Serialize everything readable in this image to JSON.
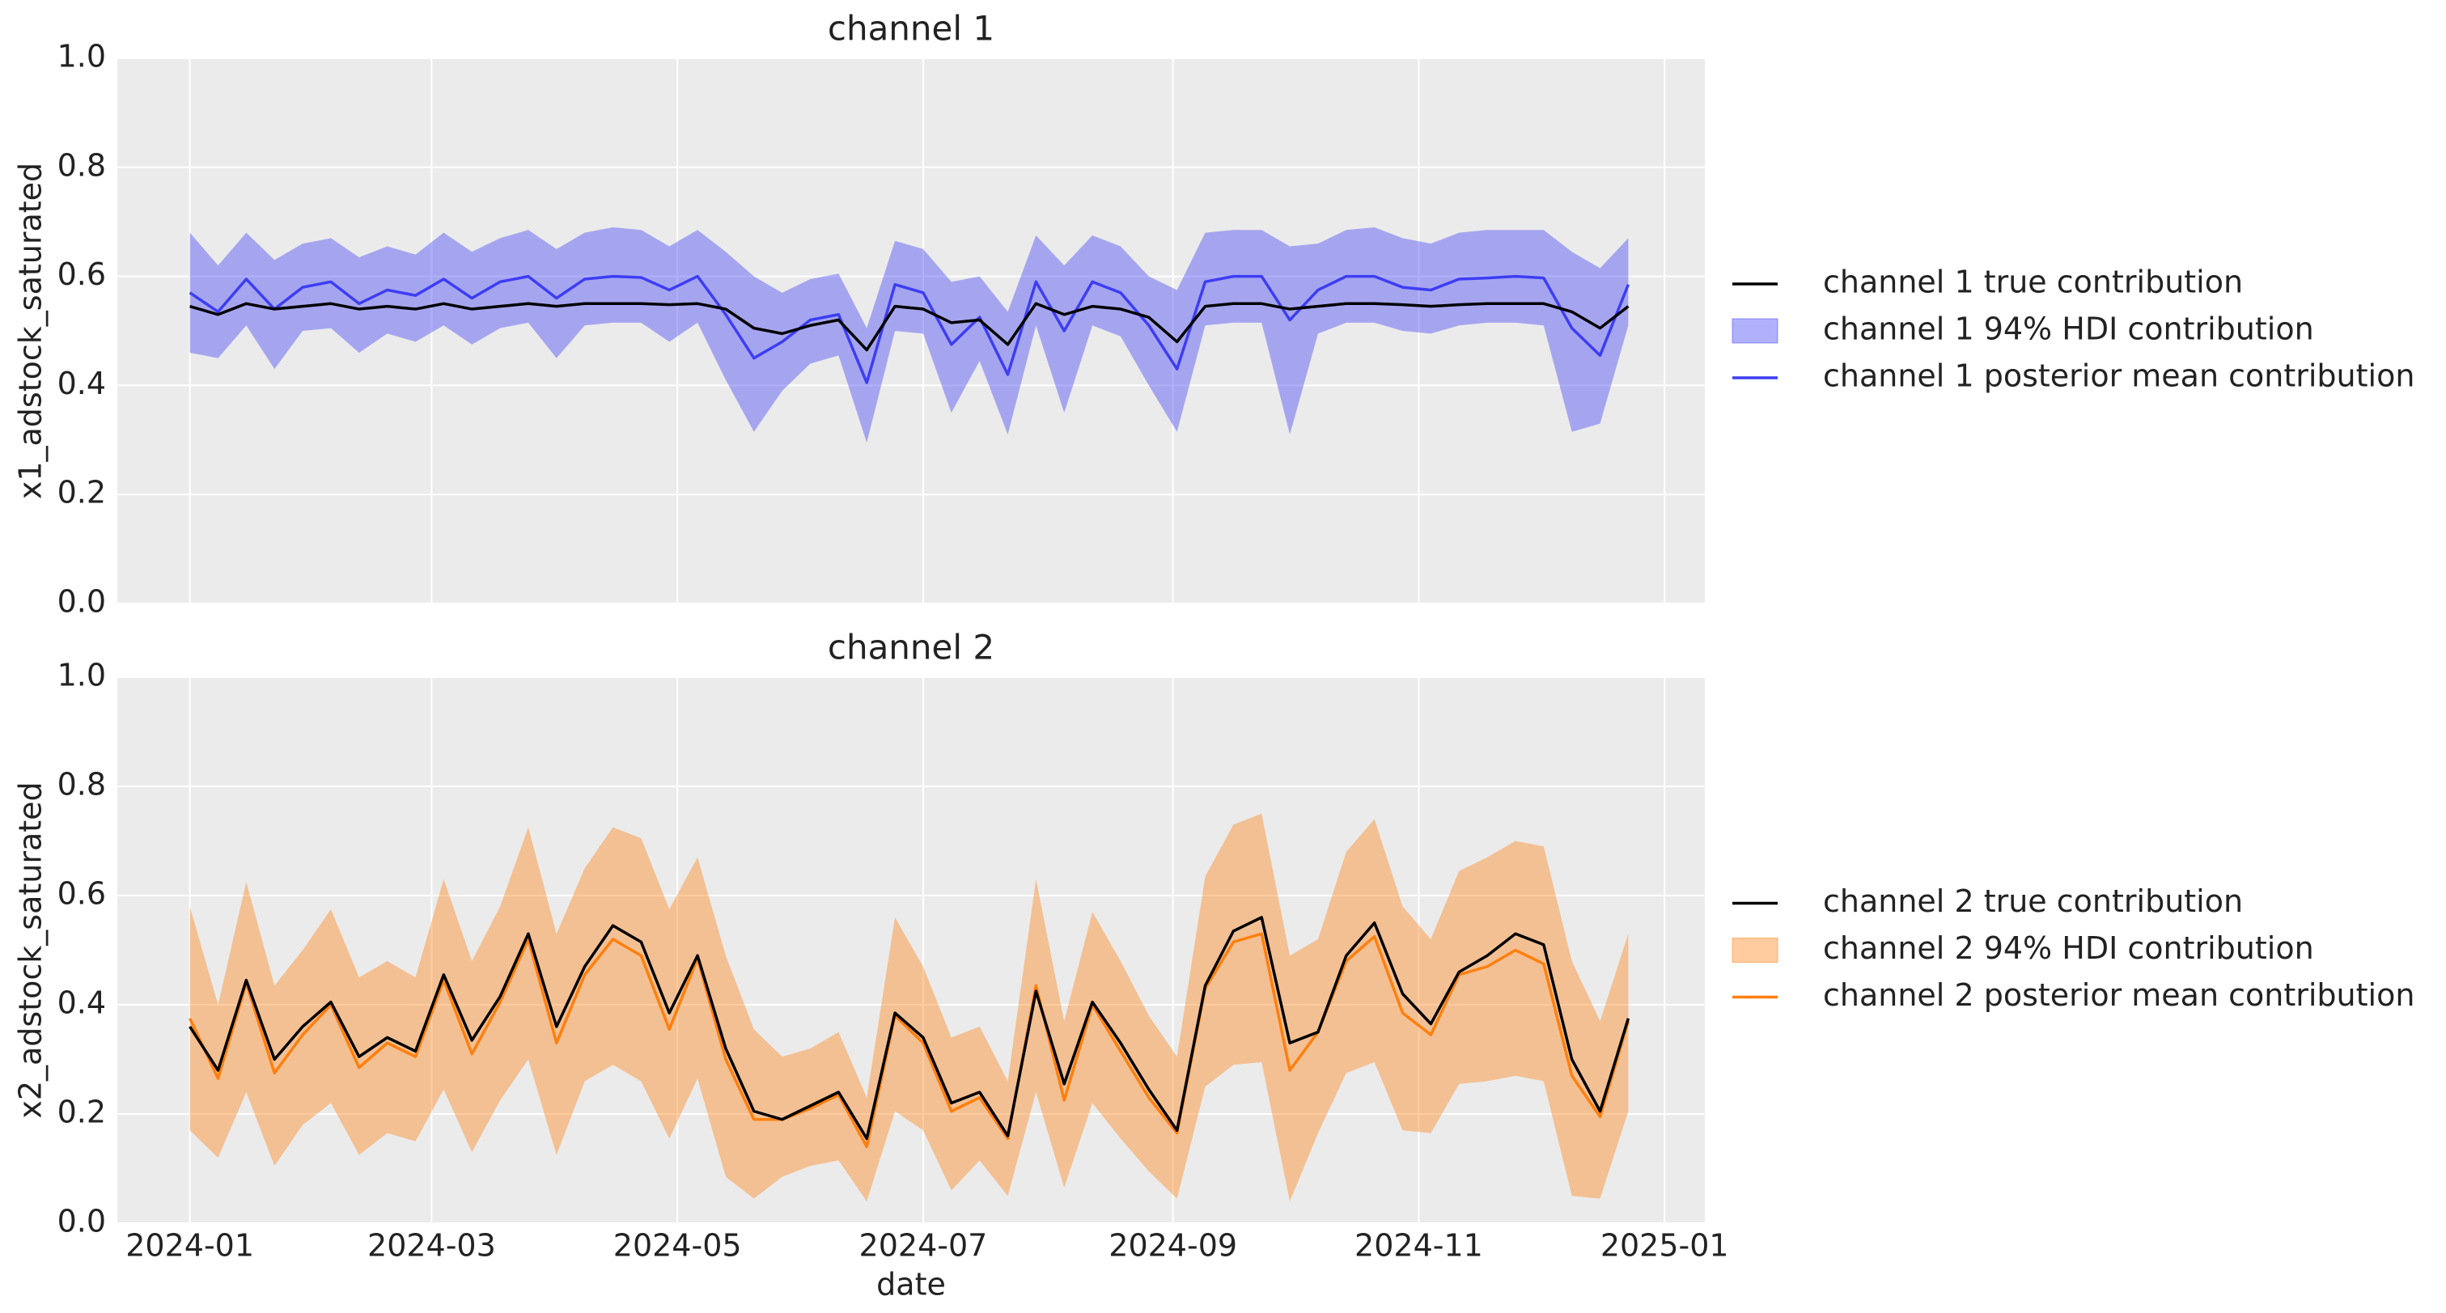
{
  "chart_data": [
    {
      "type": "line",
      "title": "channel 1",
      "ylabel": "x1_adstock_saturated",
      "legend": "right",
      "grid": true,
      "x": [
        0,
        7,
        14,
        21,
        28,
        35,
        42,
        49,
        56,
        63,
        70,
        77,
        84,
        91,
        98,
        105,
        112,
        119,
        126,
        133,
        140,
        147,
        154,
        161,
        168,
        175,
        182,
        189,
        196,
        203,
        210,
        217,
        224,
        231,
        238,
        245,
        252,
        259,
        266,
        273,
        280,
        287,
        294,
        301,
        308,
        315,
        322,
        329,
        336,
        343,
        350,
        357
      ],
      "xlim": [
        -18,
        376
      ],
      "ylim": [
        0,
        1
      ],
      "yticks": [
        {
          "value": 0,
          "label": "0.0"
        },
        0.2,
        0.4,
        0.6,
        0.8,
        {
          "value": 1,
          "label": "1.0"
        }
      ],
      "series": [
        {
          "name": "channel 1 true contribution",
          "color": "#000000",
          "values": [
            0.545,
            0.53,
            0.55,
            0.54,
            0.545,
            0.55,
            0.54,
            0.545,
            0.54,
            0.55,
            0.54,
            0.545,
            0.55,
            0.545,
            0.55,
            0.55,
            0.55,
            0.548,
            0.55,
            0.54,
            0.505,
            0.495,
            0.51,
            0.52,
            0.465,
            0.545,
            0.54,
            0.515,
            0.52,
            0.475,
            0.55,
            0.53,
            0.545,
            0.54,
            0.525,
            0.48,
            0.545,
            0.55,
            0.55,
            0.54,
            0.545,
            0.55,
            0.55,
            0.548,
            0.545,
            0.548,
            0.55,
            0.55,
            0.55,
            0.535,
            0.505,
            0.545
          ]
        },
        {
          "name": "channel 1 94% HDI contribution",
          "color": "#3d3df5",
          "type": "band",
          "lower": [
            0.46,
            0.45,
            0.51,
            0.43,
            0.5,
            0.505,
            0.46,
            0.495,
            0.48,
            0.51,
            0.475,
            0.505,
            0.515,
            0.45,
            0.51,
            0.515,
            0.515,
            0.48,
            0.515,
            0.41,
            0.315,
            0.39,
            0.44,
            0.455,
            0.295,
            0.5,
            0.495,
            0.35,
            0.445,
            0.31,
            0.51,
            0.35,
            0.51,
            0.49,
            0.4,
            0.315,
            0.51,
            0.515,
            0.515,
            0.31,
            0.495,
            0.515,
            0.515,
            0.5,
            0.495,
            0.51,
            0.515,
            0.515,
            0.51,
            0.315,
            0.33,
            0.51
          ],
          "upper": [
            0.68,
            0.62,
            0.68,
            0.63,
            0.66,
            0.67,
            0.635,
            0.655,
            0.64,
            0.68,
            0.645,
            0.67,
            0.685,
            0.65,
            0.68,
            0.69,
            0.685,
            0.655,
            0.685,
            0.645,
            0.6,
            0.57,
            0.595,
            0.605,
            0.505,
            0.665,
            0.65,
            0.59,
            0.6,
            0.535,
            0.675,
            0.62,
            0.675,
            0.655,
            0.6,
            0.575,
            0.68,
            0.685,
            0.685,
            0.655,
            0.66,
            0.685,
            0.69,
            0.67,
            0.66,
            0.68,
            0.685,
            0.685,
            0.685,
            0.645,
            0.615,
            0.67
          ]
        },
        {
          "name": "channel 1 posterior mean contribution",
          "color": "#3d3df5",
          "values": [
            0.57,
            0.535,
            0.595,
            0.54,
            0.58,
            0.59,
            0.55,
            0.575,
            0.565,
            0.595,
            0.56,
            0.59,
            0.6,
            0.56,
            0.595,
            0.6,
            0.598,
            0.575,
            0.6,
            0.53,
            0.45,
            0.48,
            0.52,
            0.53,
            0.405,
            0.585,
            0.57,
            0.475,
            0.525,
            0.42,
            0.59,
            0.5,
            0.59,
            0.57,
            0.51,
            0.43,
            0.59,
            0.6,
            0.6,
            0.52,
            0.575,
            0.6,
            0.6,
            0.58,
            0.575,
            0.595,
            0.597,
            0.6,
            0.597,
            0.505,
            0.455,
            0.585
          ]
        }
      ]
    },
    {
      "type": "line",
      "title": "channel 2",
      "ylabel": "x2_adstock_saturated",
      "xlabel": "date",
      "legend": "right",
      "grid": true,
      "x": [
        0,
        7,
        14,
        21,
        28,
        35,
        42,
        49,
        56,
        63,
        70,
        77,
        84,
        91,
        98,
        105,
        112,
        119,
        126,
        133,
        140,
        147,
        154,
        161,
        168,
        175,
        182,
        189,
        196,
        203,
        210,
        217,
        224,
        231,
        238,
        245,
        252,
        259,
        266,
        273,
        280,
        287,
        294,
        301,
        308,
        315,
        322,
        329,
        336,
        343,
        350,
        357
      ],
      "xlim": [
        -18,
        376
      ],
      "ylim": [
        0,
        1
      ],
      "xticks": [
        {
          "value": 0,
          "label": "2024-01"
        },
        {
          "value": 60,
          "label": "2024-03"
        },
        {
          "value": 121,
          "label": "2024-05"
        },
        {
          "value": 182,
          "label": "2024-07"
        },
        {
          "value": 244,
          "label": "2024-09"
        },
        {
          "value": 305,
          "label": "2024-11"
        },
        {
          "value": 366,
          "label": "2025-01"
        }
      ],
      "yticks": [
        {
          "value": 0,
          "label": "0.0"
        },
        0.2,
        0.4,
        0.6,
        0.8,
        {
          "value": 1,
          "label": "1.0"
        }
      ],
      "series": [
        {
          "name": "channel 2 true contribution",
          "color": "#000000",
          "values": [
            0.36,
            0.28,
            0.445,
            0.3,
            0.36,
            0.405,
            0.305,
            0.34,
            0.315,
            0.455,
            0.335,
            0.415,
            0.53,
            0.36,
            0.47,
            0.545,
            0.515,
            0.385,
            0.49,
            0.32,
            0.205,
            0.19,
            0.215,
            0.24,
            0.155,
            0.385,
            0.34,
            0.22,
            0.24,
            0.16,
            0.425,
            0.255,
            0.405,
            0.33,
            0.245,
            0.17,
            0.435,
            0.535,
            0.56,
            0.33,
            0.35,
            0.49,
            0.55,
            0.42,
            0.365,
            0.46,
            0.49,
            0.53,
            0.51,
            0.3,
            0.205,
            0.375
          ]
        },
        {
          "name": "channel 2 94% HDI contribution",
          "color": "#ff7f0e",
          "type": "band",
          "lower": [
            0.17,
            0.12,
            0.24,
            0.105,
            0.18,
            0.22,
            0.125,
            0.165,
            0.15,
            0.245,
            0.13,
            0.225,
            0.3,
            0.125,
            0.26,
            0.29,
            0.26,
            0.155,
            0.265,
            0.085,
            0.045,
            0.085,
            0.105,
            0.115,
            0.04,
            0.205,
            0.17,
            0.06,
            0.115,
            0.05,
            0.24,
            0.065,
            0.22,
            0.155,
            0.095,
            0.045,
            0.25,
            0.29,
            0.295,
            0.04,
            0.165,
            0.275,
            0.295,
            0.17,
            0.165,
            0.255,
            0.26,
            0.27,
            0.26,
            0.05,
            0.045,
            0.205
          ],
          "upper": [
            0.58,
            0.4,
            0.625,
            0.435,
            0.5,
            0.575,
            0.45,
            0.48,
            0.45,
            0.63,
            0.48,
            0.58,
            0.725,
            0.53,
            0.65,
            0.725,
            0.705,
            0.575,
            0.67,
            0.49,
            0.355,
            0.305,
            0.32,
            0.35,
            0.23,
            0.56,
            0.47,
            0.34,
            0.36,
            0.26,
            0.63,
            0.37,
            0.57,
            0.48,
            0.38,
            0.305,
            0.635,
            0.73,
            0.75,
            0.49,
            0.52,
            0.68,
            0.74,
            0.58,
            0.52,
            0.645,
            0.67,
            0.7,
            0.69,
            0.48,
            0.37,
            0.53
          ]
        },
        {
          "name": "channel 2 posterior mean contribution",
          "color": "#ff7f0e",
          "values": [
            0.375,
            0.265,
            0.44,
            0.275,
            0.345,
            0.4,
            0.285,
            0.33,
            0.305,
            0.445,
            0.31,
            0.405,
            0.52,
            0.33,
            0.455,
            0.52,
            0.49,
            0.355,
            0.485,
            0.3,
            0.19,
            0.19,
            0.21,
            0.235,
            0.14,
            0.38,
            0.33,
            0.205,
            0.23,
            0.155,
            0.435,
            0.225,
            0.4,
            0.315,
            0.23,
            0.165,
            0.43,
            0.515,
            0.53,
            0.28,
            0.35,
            0.48,
            0.525,
            0.385,
            0.345,
            0.455,
            0.47,
            0.5,
            0.475,
            0.27,
            0.195,
            0.37
          ]
        }
      ]
    }
  ]
}
